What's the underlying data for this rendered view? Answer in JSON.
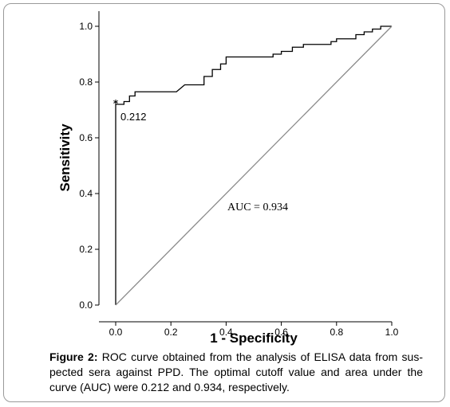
{
  "chart_data": {
    "type": "line",
    "xlabel": "1 - Specificity",
    "ylabel": "Sensitivity",
    "xlim": [
      0,
      1
    ],
    "ylim": [
      0,
      1
    ],
    "xticks": [
      "0.0",
      "0.2",
      "0.4",
      "0.6",
      "0.8",
      "1.0"
    ],
    "yticks": [
      "0.0",
      "0.2",
      "0.4",
      "0.6",
      "0.8",
      "1.0"
    ],
    "grid": false,
    "series": [
      {
        "color": "#000000",
        "points": [
          [
            0,
            0
          ],
          [
            0,
            0.72
          ],
          [
            0.03,
            0.72
          ],
          [
            0.03,
            0.73
          ],
          [
            0.05,
            0.73
          ],
          [
            0.05,
            0.75
          ],
          [
            0.07,
            0.75
          ],
          [
            0.07,
            0.765
          ],
          [
            0.22,
            0.765
          ],
          [
            0.25,
            0.79
          ],
          [
            0.32,
            0.79
          ],
          [
            0.32,
            0.82
          ],
          [
            0.35,
            0.82
          ],
          [
            0.35,
            0.845
          ],
          [
            0.38,
            0.845
          ],
          [
            0.38,
            0.865
          ],
          [
            0.4,
            0.865
          ],
          [
            0.4,
            0.89
          ],
          [
            0.57,
            0.89
          ],
          [
            0.57,
            0.9
          ],
          [
            0.6,
            0.9
          ],
          [
            0.6,
            0.91
          ],
          [
            0.64,
            0.91
          ],
          [
            0.64,
            0.925
          ],
          [
            0.68,
            0.925
          ],
          [
            0.68,
            0.935
          ],
          [
            0.78,
            0.935
          ],
          [
            0.78,
            0.945
          ],
          [
            0.8,
            0.945
          ],
          [
            0.8,
            0.955
          ],
          [
            0.87,
            0.955
          ],
          [
            0.87,
            0.97
          ],
          [
            0.9,
            0.97
          ],
          [
            0.9,
            0.98
          ],
          [
            0.93,
            0.98
          ],
          [
            0.93,
            0.99
          ],
          [
            0.96,
            0.99
          ],
          [
            0.96,
            1.0
          ],
          [
            1.0,
            1.0
          ]
        ]
      },
      {
        "color": "#8a8a8a",
        "points": [
          [
            0,
            0
          ],
          [
            1,
            1
          ]
        ]
      }
    ],
    "cutoff_point": {
      "x": 0.0,
      "y": 0.72,
      "label": "0.212"
    },
    "annotation": "AUC = 0.934"
  },
  "caption": {
    "label": "Figure 2:",
    "text": " ROC curve obtained from the analysis of ELISA data from sus-pected sera against PPD. The optimal cutoff value and area under the curve (AUC) were 0.212 and 0.934, respectively."
  }
}
